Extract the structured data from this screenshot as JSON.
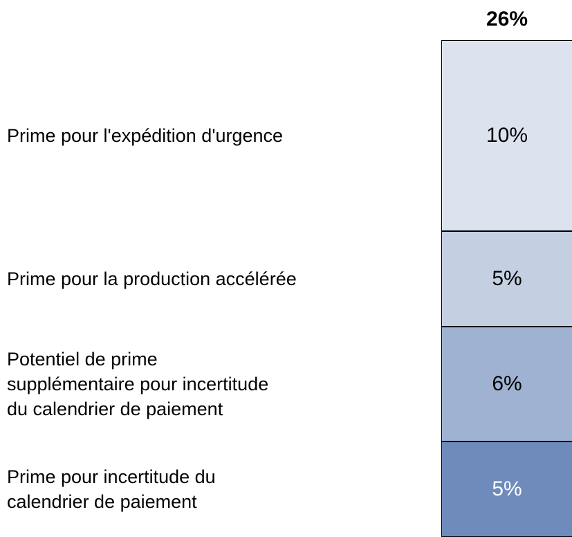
{
  "chart_data": {
    "type": "bar",
    "stacked": true,
    "total": 26,
    "total_label": "26%",
    "categories": [
      "Prime pour l'expédition d'urgence",
      "Prime pour la production accélérée",
      "Potentiel de prime\nsupplémentaire pour incertitude\ndu calendrier de paiement",
      "Prime pour incertitude du\ncalendrier de paiement"
    ],
    "values": [
      10,
      5,
      6,
      5
    ],
    "value_labels": [
      "10%",
      "5%",
      "6%",
      "5%"
    ],
    "colors": [
      "#dde3ee",
      "#c4cfe1",
      "#a0b2d1",
      "#6e8bbb"
    ],
    "label_colors": [
      "#000000",
      "#000000",
      "#000000",
      "#ffffff"
    ]
  }
}
